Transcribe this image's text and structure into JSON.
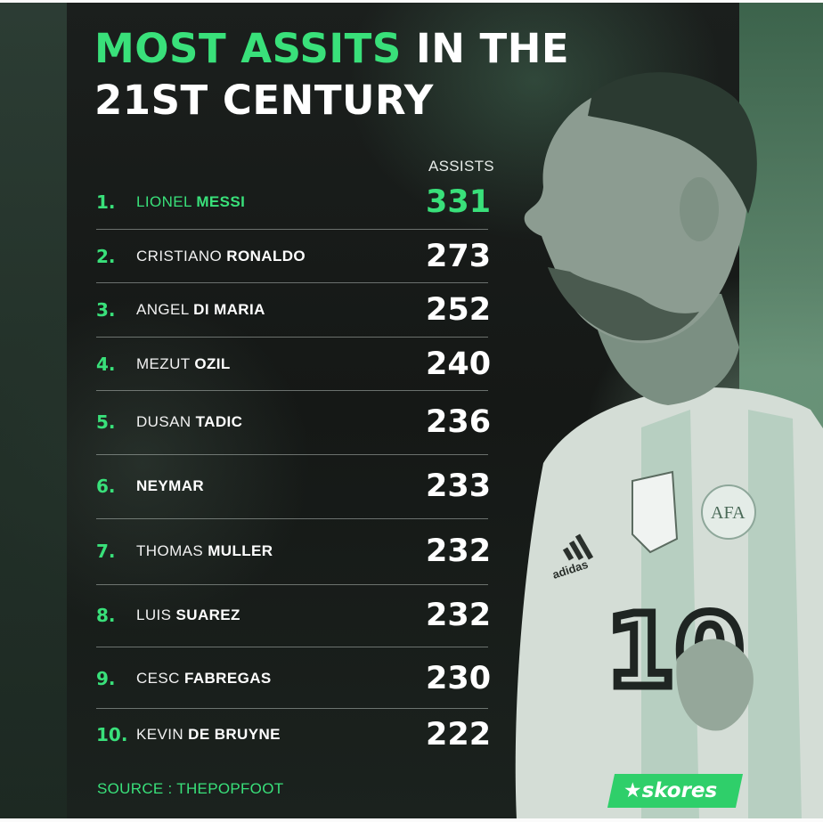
{
  "title": {
    "accent": "MOST ASSITS",
    "line1_rest": "IN THE",
    "line2": "21ST CENTURY"
  },
  "column_header": "ASSISTS",
  "rows": [
    {
      "rank": "1.",
      "first": "LIONEL",
      "last": "MESSI",
      "assists": "331"
    },
    {
      "rank": "2.",
      "first": "CRISTIANO",
      "last": "RONALDO",
      "assists": "273"
    },
    {
      "rank": "3.",
      "first": "ANGEL",
      "last": "DI MARIA",
      "assists": "252"
    },
    {
      "rank": "4.",
      "first": "MEZUT",
      "last": "OZIL",
      "assists": "240"
    },
    {
      "rank": "5.",
      "first": "DUSAN",
      "last": "TADIC",
      "assists": "236"
    },
    {
      "rank": "6.",
      "first": "",
      "last": "NEYMAR",
      "assists": "233"
    },
    {
      "rank": "7.",
      "first": "THOMAS",
      "last": "MULLER",
      "assists": "232"
    },
    {
      "rank": "8.",
      "first": "LUIS",
      "last": "SUAREZ",
      "assists": "232"
    },
    {
      "rank": "9.",
      "first": "CESC",
      "last": "FABREGAS",
      "assists": "230"
    },
    {
      "rank": "10.",
      "first": "KEVIN",
      "last": "DE BRUYNE",
      "assists": "222"
    }
  ],
  "source": "SOURCE : THEPOPFOOT",
  "brand": {
    "icon": "star-icon",
    "name": "skores"
  },
  "shirt": {
    "brand": "adidas",
    "number": "10",
    "crest": "AFA"
  },
  "colors": {
    "accent": "#39e07a",
    "background": "#171a18",
    "text": "#ffffff"
  }
}
